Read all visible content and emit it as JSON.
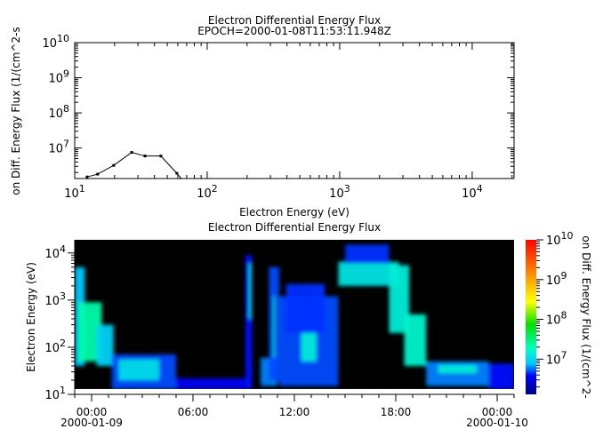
{
  "chart_data": [
    {
      "type": "line",
      "title": "Electron Differential Energy Flux",
      "subtitle": "EPOCH=2000-01-08T11:53:11.948Z",
      "xlabel": "Electron Energy (eV)",
      "ylabel": "on Diff. Energy Flux (1/(cm^2-s",
      "xscale": "log",
      "yscale": "log",
      "xlim": [
        10,
        20700
      ],
      "ylim": [
        1350000,
        10000000000
      ],
      "x_ticks": [
        {
          "v": 10,
          "b": "10",
          "e": "1"
        },
        {
          "v": 100,
          "b": "10",
          "e": "2"
        },
        {
          "v": 1000,
          "b": "10",
          "e": "3"
        },
        {
          "v": 10000,
          "b": "10",
          "e": "4"
        }
      ],
      "y_ticks": [
        {
          "v": 10000000,
          "b": "10",
          "e": "7"
        },
        {
          "v": 100000000,
          "b": "10",
          "e": "8"
        },
        {
          "v": 1000000000,
          "b": "10",
          "e": "9"
        },
        {
          "v": 10000000000,
          "b": "10",
          "e": "10"
        }
      ],
      "grid": false,
      "x": [
        12.4,
        14.9,
        19.7,
        26.9,
        33.9,
        44.7,
        59,
        70
      ],
      "y": [
        1500000,
        1800000,
        3200000,
        7500000,
        5900000,
        5900000,
        1900000,
        900000
      ],
      "marker_points": 7,
      "color": "#000000"
    },
    {
      "type": "heatmap",
      "title": "Electron Differential Energy Flux",
      "ylabel": "Electron Energy (eV)",
      "yscale": "log",
      "xlim_hours_from_2000-01-09T00:00": [
        -1,
        25
      ],
      "ylim": [
        10,
        19000
      ],
      "data_floor": 13,
      "x_ticks": [
        {
          "h": 0,
          "l1": "00:00",
          "l2": "2000-01-09"
        },
        {
          "h": 6,
          "l1": "06:00",
          "l2": ""
        },
        {
          "h": 12,
          "l1": "12:00",
          "l2": ""
        },
        {
          "h": 18,
          "l1": "18:00",
          "l2": ""
        },
        {
          "h": 24,
          "l1": "00:00",
          "l2": "2000-01-10"
        }
      ],
      "y_ticks": [
        {
          "v": 10,
          "b": "10",
          "e": "1"
        },
        {
          "v": 100,
          "b": "10",
          "e": "2"
        },
        {
          "v": 1000,
          "b": "10",
          "e": "3"
        },
        {
          "v": 10000,
          "b": "10",
          "e": "4"
        }
      ],
      "background": "#000000",
      "colorbar": {
        "label": "on Diff. Energy Flux (1/(cm^2-",
        "scale": "log",
        "range": [
          1300000,
          10000000000
        ],
        "ticks": [
          {
            "v": 10000000,
            "b": "10",
            "e": "7"
          },
          {
            "v": 100000000,
            "b": "10",
            "e": "8"
          },
          {
            "v": 1000000000,
            "b": "10",
            "e": "9"
          },
          {
            "v": 10000000000,
            "b": "10",
            "e": "10"
          }
        ],
        "colormap": [
          "#00007f",
          "#0000ff",
          "#00c8ff",
          "#00ffc0",
          "#00e000",
          "#ffff00",
          "#ff8000",
          "#ff0000"
        ]
      },
      "regions": [
        {
          "t0": -1.0,
          "t1": -0.4,
          "e0": 40,
          "e1": 5000,
          "flux": 8000000
        },
        {
          "t0": -0.8,
          "t1": 0.6,
          "e0": 50,
          "e1": 900,
          "flux": 22000000
        },
        {
          "t0": 0.3,
          "t1": 1.3,
          "e0": 40,
          "e1": 300,
          "flux": 9000000
        },
        {
          "t0": 1.2,
          "t1": 5.0,
          "e0": 13,
          "e1": 70,
          "flux": 5000000
        },
        {
          "t0": 1.6,
          "t1": 4.0,
          "e0": 20,
          "e1": 55,
          "flux": 11000000
        },
        {
          "t0": 5.0,
          "t1": 9.1,
          "e0": 13,
          "e1": 22,
          "flux": 3500000
        },
        {
          "t0": 9.1,
          "t1": 9.5,
          "e0": 13,
          "e1": 9000,
          "flux": 4000000
        },
        {
          "t0": 9.3,
          "t1": 9.45,
          "e0": 400,
          "e1": 6000,
          "flux": 15000000
        },
        {
          "t0": 10.0,
          "t1": 11.0,
          "e0": 15,
          "e1": 60,
          "flux": 6000000
        },
        {
          "t0": 10.5,
          "t1": 11.1,
          "e0": 20,
          "e1": 5000,
          "flux": 5000000
        },
        {
          "t0": 10.75,
          "t1": 10.85,
          "e0": 60,
          "e1": 1200,
          "flux": 35000000
        },
        {
          "t0": 11.1,
          "t1": 14.6,
          "e0": 15,
          "e1": 1200,
          "flux": 5000000
        },
        {
          "t0": 11.5,
          "t1": 13.8,
          "e0": 200,
          "e1": 2200,
          "flux": 4500000
        },
        {
          "t0": 12.4,
          "t1": 13.3,
          "e0": 50,
          "e1": 200,
          "flux": 14000000
        },
        {
          "t0": 14.6,
          "t1": 18.2,
          "e0": 2000,
          "e1": 6500,
          "flux": 12000000
        },
        {
          "t0": 15.0,
          "t1": 17.6,
          "e0": 6000,
          "e1": 15000,
          "flux": 4500000
        },
        {
          "t0": 17.6,
          "t1": 18.8,
          "e0": 200,
          "e1": 5500,
          "flux": 14000000
        },
        {
          "t0": 18.5,
          "t1": 19.8,
          "e0": 40,
          "e1": 500,
          "flux": 16000000
        },
        {
          "t0": 19.8,
          "t1": 23.5,
          "e0": 15,
          "e1": 50,
          "flux": 6000000
        },
        {
          "t0": 20.5,
          "t1": 22.8,
          "e0": 28,
          "e1": 42,
          "flux": 14000000
        },
        {
          "t0": 23.5,
          "t1": 25.0,
          "e0": 13,
          "e1": 45,
          "flux": 4000000
        }
      ]
    }
  ]
}
